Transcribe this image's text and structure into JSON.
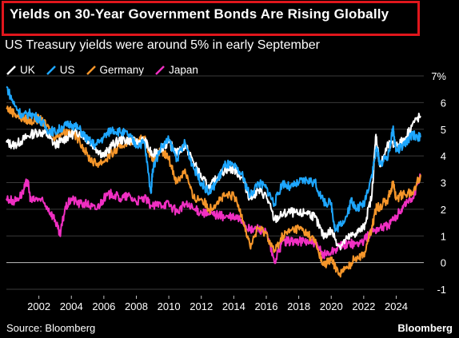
{
  "header": {
    "title": "Yields on 30-Year Government Bonds Are Rising Globally",
    "subtitle": "US Treasury yields were around 5% in early September"
  },
  "footer": {
    "source": "Source: Bloomberg",
    "brand": "Bloomberg"
  },
  "chart_data": {
    "type": "line",
    "title": "Yields on 30-Year Government Bonds Are Rising Globally",
    "subtitle": "US Treasury yields were around 5% in early September",
    "ylabel_unit": "%",
    "ylim": [
      -1,
      7
    ],
    "yticks": [
      -1,
      0,
      1,
      2,
      3,
      4,
      5,
      6,
      7
    ],
    "ytick_labels": [
      "-1",
      "0",
      "1",
      "2",
      "3",
      "4",
      "5",
      "6",
      "7%"
    ],
    "xlim": [
      2000.0,
      2025.7
    ],
    "xticks": [
      2002,
      2004,
      2006,
      2008,
      2010,
      2012,
      2014,
      2016,
      2018,
      2020,
      2022,
      2024
    ],
    "xtick_labels": [
      "2002",
      "2004",
      "2006",
      "2008",
      "2010",
      "2012",
      "2014",
      "2016",
      "2018",
      "2020",
      "2022",
      "2024"
    ],
    "grid": true,
    "legend_position": "top-left",
    "series": [
      {
        "name": "UK",
        "color": "#ffffff",
        "points": [
          [
            2000.0,
            4.5
          ],
          [
            2000.5,
            4.4
          ],
          [
            2001.0,
            4.6
          ],
          [
            2001.5,
            4.8
          ],
          [
            2002.0,
            4.9
          ],
          [
            2002.5,
            4.8
          ],
          [
            2003.0,
            4.4
          ],
          [
            2003.5,
            4.6
          ],
          [
            2004.0,
            4.8
          ],
          [
            2004.5,
            4.9
          ],
          [
            2005.0,
            4.6
          ],
          [
            2005.5,
            4.3
          ],
          [
            2006.0,
            4.0
          ],
          [
            2006.5,
            4.4
          ],
          [
            2007.0,
            4.6
          ],
          [
            2007.5,
            4.6
          ],
          [
            2008.0,
            4.5
          ],
          [
            2008.5,
            4.6
          ],
          [
            2009.0,
            4.0
          ],
          [
            2009.5,
            4.3
          ],
          [
            2010.0,
            4.5
          ],
          [
            2010.5,
            4.1
          ],
          [
            2011.0,
            4.4
          ],
          [
            2011.5,
            3.8
          ],
          [
            2012.0,
            3.2
          ],
          [
            2012.5,
            2.8
          ],
          [
            2013.0,
            3.2
          ],
          [
            2013.5,
            3.5
          ],
          [
            2014.0,
            3.5
          ],
          [
            2014.5,
            3.2
          ],
          [
            2015.0,
            2.4
          ],
          [
            2015.5,
            2.7
          ],
          [
            2016.0,
            2.5
          ],
          [
            2016.5,
            1.6
          ],
          [
            2017.0,
            1.8
          ],
          [
            2017.5,
            1.9
          ],
          [
            2018.0,
            1.8
          ],
          [
            2018.5,
            1.9
          ],
          [
            2019.0,
            1.7
          ],
          [
            2019.5,
            1.0
          ],
          [
            2020.0,
            1.2
          ],
          [
            2020.5,
            0.6
          ],
          [
            2021.0,
            0.9
          ],
          [
            2021.5,
            1.1
          ],
          [
            2022.0,
            1.3
          ],
          [
            2022.5,
            2.5
          ],
          [
            2022.75,
            4.8
          ],
          [
            2023.0,
            3.6
          ],
          [
            2023.5,
            4.4
          ],
          [
            2024.0,
            4.4
          ],
          [
            2024.5,
            4.6
          ],
          [
            2025.0,
            5.2
          ],
          [
            2025.5,
            5.5
          ]
        ]
      },
      {
        "name": "US",
        "color": "#1ea7ff",
        "points": [
          [
            2000.0,
            6.6
          ],
          [
            2000.5,
            5.9
          ],
          [
            2001.0,
            5.5
          ],
          [
            2001.5,
            5.6
          ],
          [
            2002.0,
            5.4
          ],
          [
            2002.5,
            5.0
          ],
          [
            2003.0,
            4.9
          ],
          [
            2003.5,
            5.1
          ],
          [
            2004.0,
            5.2
          ],
          [
            2004.5,
            5.0
          ],
          [
            2005.0,
            4.6
          ],
          [
            2005.5,
            4.4
          ],
          [
            2006.0,
            4.7
          ],
          [
            2006.5,
            5.0
          ],
          [
            2007.0,
            4.9
          ],
          [
            2007.5,
            4.8
          ],
          [
            2008.0,
            4.4
          ],
          [
            2008.5,
            4.5
          ],
          [
            2008.9,
            2.6
          ],
          [
            2009.0,
            3.5
          ],
          [
            2009.5,
            4.3
          ],
          [
            2010.0,
            4.6
          ],
          [
            2010.5,
            3.9
          ],
          [
            2011.0,
            4.5
          ],
          [
            2011.5,
            3.6
          ],
          [
            2012.0,
            3.0
          ],
          [
            2012.5,
            2.6
          ],
          [
            2013.0,
            3.1
          ],
          [
            2013.5,
            3.7
          ],
          [
            2014.0,
            3.6
          ],
          [
            2014.5,
            3.3
          ],
          [
            2015.0,
            2.5
          ],
          [
            2015.5,
            3.0
          ],
          [
            2016.0,
            2.8
          ],
          [
            2016.5,
            2.2
          ],
          [
            2017.0,
            3.0
          ],
          [
            2017.5,
            2.8
          ],
          [
            2018.0,
            3.0
          ],
          [
            2018.5,
            3.1
          ],
          [
            2019.0,
            3.0
          ],
          [
            2019.5,
            2.3
          ],
          [
            2020.0,
            2.2
          ],
          [
            2020.25,
            1.2
          ],
          [
            2020.5,
            1.4
          ],
          [
            2021.0,
            1.8
          ],
          [
            2021.25,
            2.4
          ],
          [
            2021.5,
            2.0
          ],
          [
            2022.0,
            2.2
          ],
          [
            2022.5,
            3.3
          ],
          [
            2022.8,
            4.3
          ],
          [
            2023.0,
            3.7
          ],
          [
            2023.5,
            4.0
          ],
          [
            2023.8,
            5.0
          ],
          [
            2024.0,
            4.2
          ],
          [
            2024.5,
            4.4
          ],
          [
            2025.0,
            4.8
          ],
          [
            2025.5,
            4.7
          ]
        ]
      },
      {
        "name": "Germany",
        "color": "#f5962a",
        "points": [
          [
            2000.0,
            5.8
          ],
          [
            2000.5,
            5.6
          ],
          [
            2001.0,
            5.4
          ],
          [
            2001.5,
            5.3
          ],
          [
            2002.0,
            5.4
          ],
          [
            2002.5,
            5.1
          ],
          [
            2003.0,
            4.7
          ],
          [
            2003.5,
            4.9
          ],
          [
            2004.0,
            4.9
          ],
          [
            2004.5,
            4.6
          ],
          [
            2005.0,
            4.0
          ],
          [
            2005.5,
            3.7
          ],
          [
            2006.0,
            3.8
          ],
          [
            2006.5,
            4.1
          ],
          [
            2007.0,
            4.3
          ],
          [
            2007.5,
            4.6
          ],
          [
            2008.0,
            4.5
          ],
          [
            2008.5,
            4.7
          ],
          [
            2009.0,
            3.8
          ],
          [
            2009.5,
            4.2
          ],
          [
            2010.0,
            3.9
          ],
          [
            2010.5,
            3.0
          ],
          [
            2011.0,
            3.5
          ],
          [
            2011.5,
            2.4
          ],
          [
            2012.0,
            2.4
          ],
          [
            2012.5,
            2.0
          ],
          [
            2013.0,
            2.3
          ],
          [
            2013.5,
            2.5
          ],
          [
            2014.0,
            2.5
          ],
          [
            2014.5,
            1.8
          ],
          [
            2015.0,
            0.6
          ],
          [
            2015.5,
            1.3
          ],
          [
            2016.0,
            1.1
          ],
          [
            2016.5,
            0.4
          ],
          [
            2017.0,
            1.0
          ],
          [
            2017.5,
            1.2
          ],
          [
            2018.0,
            1.3
          ],
          [
            2018.5,
            1.1
          ],
          [
            2019.0,
            0.8
          ],
          [
            2019.5,
            -0.1
          ],
          [
            2020.0,
            0.1
          ],
          [
            2020.5,
            -0.4
          ],
          [
            2021.0,
            -0.2
          ],
          [
            2021.5,
            0.2
          ],
          [
            2022.0,
            0.3
          ],
          [
            2022.5,
            1.3
          ],
          [
            2022.8,
            2.1
          ],
          [
            2023.0,
            2.1
          ],
          [
            2023.5,
            2.4
          ],
          [
            2023.8,
            3.0
          ],
          [
            2024.0,
            2.4
          ],
          [
            2024.5,
            2.6
          ],
          [
            2025.0,
            2.6
          ],
          [
            2025.5,
            3.3
          ]
        ]
      },
      {
        "name": "Japan",
        "color": "#f02fc2",
        "points": [
          [
            2000.0,
            2.4
          ],
          [
            2000.5,
            2.3
          ],
          [
            2001.0,
            2.6
          ],
          [
            2001.3,
            3.1
          ],
          [
            2001.5,
            2.3
          ],
          [
            2002.0,
            2.4
          ],
          [
            2002.5,
            2.1
          ],
          [
            2003.0,
            1.6
          ],
          [
            2003.3,
            1.0
          ],
          [
            2003.6,
            2.0
          ],
          [
            2004.0,
            2.4
          ],
          [
            2004.5,
            2.2
          ],
          [
            2005.0,
            2.2
          ],
          [
            2005.5,
            2.0
          ],
          [
            2006.0,
            2.4
          ],
          [
            2006.5,
            2.6
          ],
          [
            2007.0,
            2.4
          ],
          [
            2007.5,
            2.5
          ],
          [
            2008.0,
            2.3
          ],
          [
            2008.5,
            2.4
          ],
          [
            2009.0,
            2.1
          ],
          [
            2009.5,
            2.2
          ],
          [
            2010.0,
            2.2
          ],
          [
            2010.5,
            1.9
          ],
          [
            2011.0,
            2.2
          ],
          [
            2011.5,
            2.0
          ],
          [
            2012.0,
            1.9
          ],
          [
            2012.5,
            1.8
          ],
          [
            2013.0,
            1.8
          ],
          [
            2013.5,
            1.7
          ],
          [
            2014.0,
            1.7
          ],
          [
            2014.5,
            1.6
          ],
          [
            2015.0,
            1.2
          ],
          [
            2015.5,
            1.3
          ],
          [
            2016.0,
            1.1
          ],
          [
            2016.5,
            0.0
          ],
          [
            2017.0,
            0.8
          ],
          [
            2017.5,
            0.8
          ],
          [
            2018.0,
            0.8
          ],
          [
            2018.5,
            0.8
          ],
          [
            2019.0,
            0.7
          ],
          [
            2019.5,
            0.3
          ],
          [
            2020.0,
            0.4
          ],
          [
            2020.5,
            0.6
          ],
          [
            2021.0,
            0.7
          ],
          [
            2021.5,
            0.7
          ],
          [
            2022.0,
            0.8
          ],
          [
            2022.5,
            1.2
          ],
          [
            2023.0,
            1.3
          ],
          [
            2023.5,
            1.4
          ],
          [
            2024.0,
            1.7
          ],
          [
            2024.5,
            2.2
          ],
          [
            2025.0,
            2.4
          ],
          [
            2025.5,
            3.2
          ]
        ]
      }
    ]
  }
}
